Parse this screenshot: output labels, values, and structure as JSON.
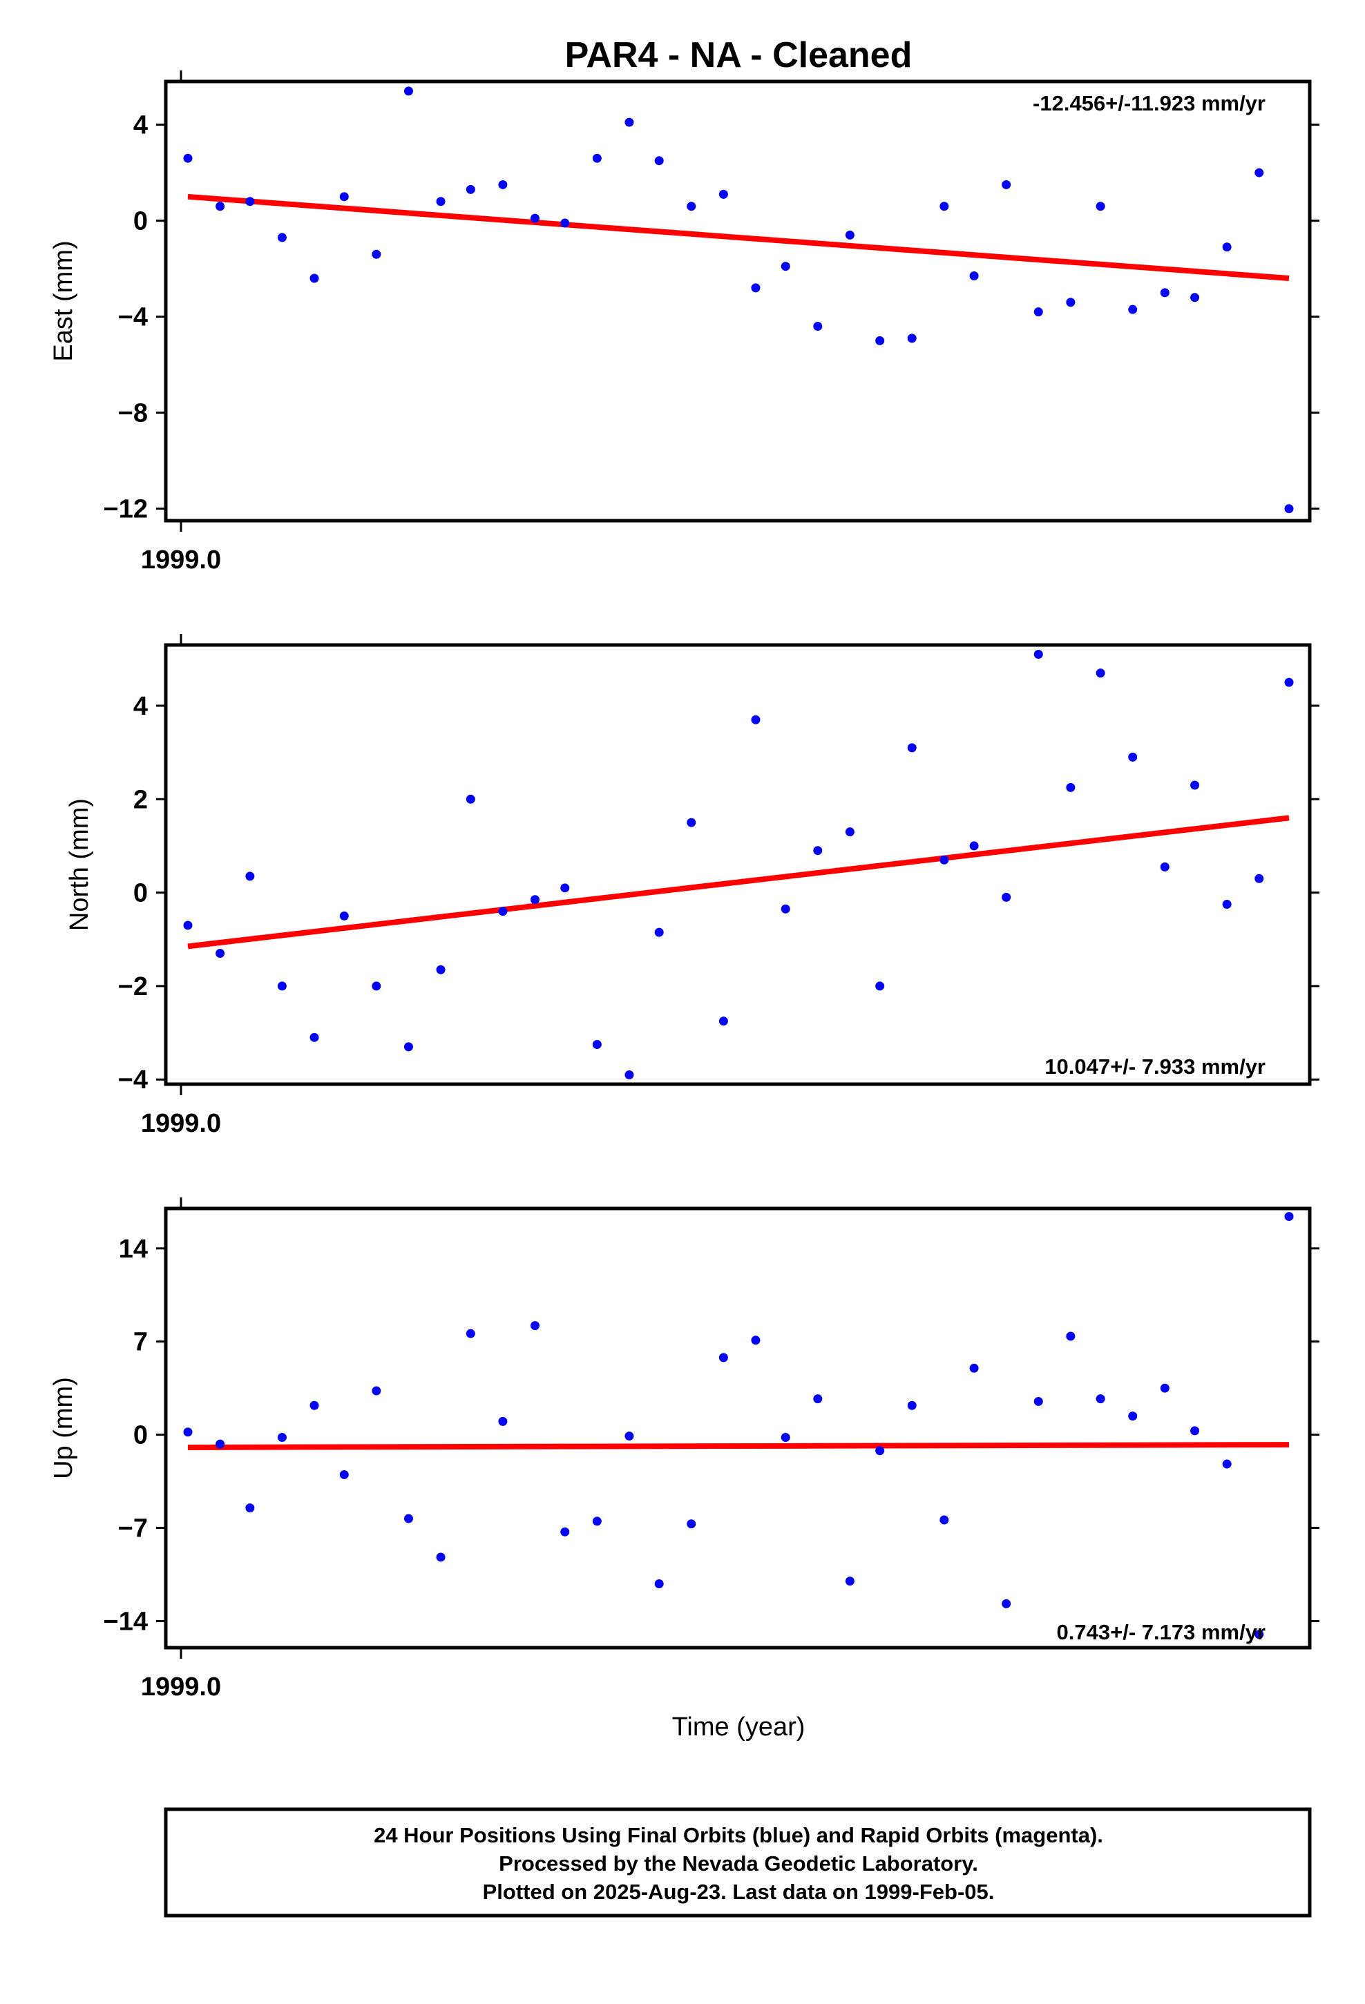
{
  "chart_title": "PAR4  - NA - Cleaned",
  "chart_data": [
    {
      "type": "scatter",
      "ylabel": "East (mm)",
      "xtick_label": "1999.0",
      "rate_label": "-12.456+/-11.923 mm/yr",
      "ylim": [
        -12.5,
        5.8
      ],
      "yticks": [
        4,
        0,
        -4,
        -8,
        -12
      ],
      "ytick_labels": [
        "4",
        "0",
        "−4",
        "−8",
        "−12"
      ],
      "point_color": "#0000ff",
      "trend_color": "#ff0000",
      "x": [
        1999.0,
        1999.0014,
        1999.0027,
        1999.0041,
        1999.0055,
        1999.0068,
        1999.0082,
        1999.0096,
        1999.011,
        1999.0123,
        1999.0137,
        1999.0151,
        1999.0164,
        1999.0178,
        1999.0192,
        1999.0205,
        1999.0219,
        1999.0233,
        1999.0247,
        1999.026,
        1999.0274,
        1999.0288,
        1999.0301,
        1999.0315,
        1999.0329,
        1999.0342,
        1999.0356,
        1999.037,
        1999.0384,
        1999.0397,
        1999.0411,
        1999.0425,
        1999.0438,
        1999.0452,
        1999.0466,
        1999.0479
      ],
      "values": [
        2.6,
        0.6,
        0.8,
        -0.7,
        -2.4,
        1.0,
        -1.4,
        5.4,
        0.8,
        1.3,
        1.5,
        0.1,
        -0.1,
        2.6,
        4.1,
        2.5,
        0.6,
        1.1,
        -2.8,
        -1.9,
        -4.4,
        -0.6,
        -5.0,
        -4.9,
        0.6,
        -2.3,
        1.5,
        -3.8,
        -3.4,
        0.6,
        -3.7,
        -3.0,
        -3.2,
        -1.1,
        2.0,
        -12.0
      ],
      "trend": {
        "x": [
          1999.0,
          1999.0479
        ],
        "y": [
          1.0,
          -2.4
        ]
      }
    },
    {
      "type": "scatter",
      "ylabel": "North (mm)",
      "xtick_label": "1999.0",
      "rate_label": "10.047+/- 7.933 mm/yr",
      "ylim": [
        -4.1,
        5.3
      ],
      "yticks": [
        4,
        2,
        0,
        -2,
        -4
      ],
      "ytick_labels": [
        "4",
        "2",
        "0",
        "−2",
        "−4"
      ],
      "point_color": "#0000ff",
      "trend_color": "#ff0000",
      "x": [
        1999.0,
        1999.0014,
        1999.0027,
        1999.0041,
        1999.0055,
        1999.0068,
        1999.0082,
        1999.0096,
        1999.011,
        1999.0123,
        1999.0137,
        1999.0151,
        1999.0164,
        1999.0178,
        1999.0192,
        1999.0205,
        1999.0219,
        1999.0233,
        1999.0247,
        1999.026,
        1999.0274,
        1999.0288,
        1999.0301,
        1999.0315,
        1999.0329,
        1999.0342,
        1999.0356,
        1999.037,
        1999.0384,
        1999.0397,
        1999.0411,
        1999.0425,
        1999.0438,
        1999.0452,
        1999.0466,
        1999.0479
      ],
      "values": [
        -0.7,
        -1.3,
        0.35,
        -2.0,
        -3.1,
        -0.5,
        -2.0,
        -3.3,
        -1.65,
        2.0,
        -0.4,
        -0.15,
        0.1,
        -3.25,
        -3.9,
        -0.85,
        1.5,
        -2.75,
        3.7,
        -0.35,
        0.9,
        1.3,
        -2.0,
        3.1,
        0.7,
        1.0,
        -0.1,
        5.1,
        2.25,
        4.7,
        2.9,
        0.55,
        2.3,
        -0.25,
        0.3,
        4.5
      ],
      "trend": {
        "x": [
          1999.0,
          1999.0479
        ],
        "y": [
          -1.15,
          1.6
        ]
      }
    },
    {
      "type": "scatter",
      "ylabel": "Up (mm)",
      "xtick_label": "1999.0",
      "rate_label": "0.743+/- 7.173 mm/yr",
      "ylim": [
        -16,
        17
      ],
      "yticks": [
        14,
        7,
        0,
        -7,
        -14
      ],
      "ytick_labels": [
        "14",
        "7",
        "0",
        "−7",
        "−14"
      ],
      "point_color": "#0000ff",
      "trend_color": "#ff0000",
      "x": [
        1999.0,
        1999.0014,
        1999.0027,
        1999.0041,
        1999.0055,
        1999.0068,
        1999.0082,
        1999.0096,
        1999.011,
        1999.0123,
        1999.0137,
        1999.0151,
        1999.0164,
        1999.0178,
        1999.0192,
        1999.0205,
        1999.0219,
        1999.0233,
        1999.0247,
        1999.026,
        1999.0274,
        1999.0288,
        1999.0301,
        1999.0315,
        1999.0329,
        1999.0342,
        1999.0356,
        1999.037,
        1999.0384,
        1999.0397,
        1999.0411,
        1999.0425,
        1999.0438,
        1999.0452,
        1999.0466,
        1999.0479
      ],
      "values": [
        0.2,
        -0.7,
        -5.5,
        -0.2,
        2.2,
        -3.0,
        3.3,
        -6.3,
        -9.2,
        7.6,
        1.0,
        8.2,
        -7.3,
        -6.5,
        -0.1,
        -11.2,
        -6.7,
        5.8,
        7.1,
        -0.2,
        2.7,
        -11.0,
        -1.2,
        2.2,
        -6.4,
        5.0,
        -12.7,
        2.5,
        7.4,
        2.7,
        1.4,
        3.5,
        0.3,
        -2.2,
        -15.0,
        16.4
      ],
      "trend": {
        "x": [
          1999.0,
          1999.0479
        ],
        "y": [
          -0.95,
          -0.75
        ]
      }
    }
  ],
  "xlabel": "Time (year)",
  "caption": {
    "line1": "24 Hour Positions Using Final Orbits (blue) and Rapid Orbits (magenta).",
    "line2": "Processed by the Nevada Geodetic Laboratory.",
    "line3": "Plotted on 2025-Aug-23. Last data on 1999-Feb-05."
  }
}
